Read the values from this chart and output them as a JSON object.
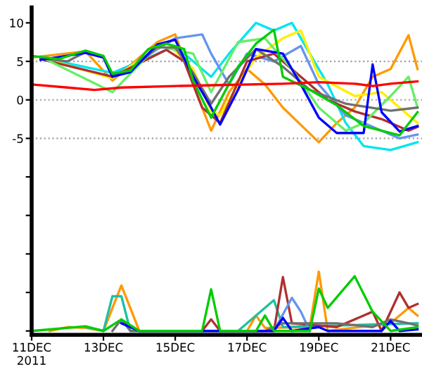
{
  "chart_data": {
    "type": "line",
    "xlim": [
      "2011-12-11T00:00",
      "2011-12-21T21:00"
    ],
    "ylim": [
      -30.5,
      12
    ],
    "xticks": [
      {
        "value": "2011-12-11",
        "label": "11DEC\n2011"
      },
      {
        "value": "2011-12-13",
        "label": "13DEC"
      },
      {
        "value": "2011-12-15",
        "label": "15DEC"
      },
      {
        "value": "2011-12-17",
        "label": "17DEC"
      },
      {
        "value": "2011-12-19",
        "label": "19DEC"
      },
      {
        "value": "2011-12-21",
        "label": "21DEC"
      }
    ],
    "yticks": [
      10,
      5,
      0,
      -5,
      {
        "value": -10,
        "label": null
      },
      {
        "value": -15,
        "label": null
      },
      {
        "value": -20,
        "label": null
      },
      {
        "value": -25,
        "label": null
      },
      {
        "value": -30,
        "label": null
      }
    ],
    "ref_lines": [
      {
        "axis": "y",
        "value": 5,
        "label": null,
        "color": "#a0a0a0",
        "line_style": "dotted"
      },
      {
        "axis": "y",
        "value": 0,
        "label": null,
        "color": "#a0a0a0",
        "line_style": "dotted"
      },
      {
        "axis": "y",
        "value": -5,
        "label": null,
        "color": "#a0a0a0",
        "line_style": "dotted"
      }
    ],
    "grid": false,
    "marker": "none",
    "line_style": "solid",
    "series": [
      {
        "color": "#ff9900",
        "x": [
          "2011-12-11T00:00",
          "2011-12-12T12:00",
          "2011-12-13T06:00",
          "2011-12-14T12:00",
          "2011-12-15T00:00",
          "2011-12-15T12:00",
          "2011-12-16T00:00",
          "2011-12-16T12:00",
          "2011-12-17T00:00",
          "2011-12-17T12:00",
          "2011-12-18T00:00",
          "2011-12-19T00:00",
          "2011-12-19T12:00",
          "2011-12-20T00:00",
          "2011-12-20T12:00",
          "2011-12-21T00:00",
          "2011-12-21T12:00",
          "2011-12-21T18:00"
        ],
        "values": [
          5.5,
          6.3,
          2.5,
          7.5,
          8.5,
          2.0,
          -4.0,
          1.0,
          4.0,
          2.0,
          -1.0,
          -5.5,
          -3.0,
          -1.0,
          3.0,
          4.0,
          8.4,
          4.0
        ]
      },
      {
        "color": "#00e5ee",
        "x": [
          "2011-12-11T06:00",
          "2011-12-13T06:00",
          "2011-12-15T00:00",
          "2011-12-15T12:00",
          "2011-12-16T00:00",
          "2011-12-16T12:00",
          "2011-12-17T06:00",
          "2011-12-17T18:00",
          "2011-12-18T06:00",
          "2011-12-18T18:00",
          "2011-12-19T06:00",
          "2011-12-19T18:00",
          "2011-12-20T06:00",
          "2011-12-21T00:00",
          "2011-12-21T18:00"
        ],
        "values": [
          5.5,
          3.5,
          7.0,
          5.0,
          3.0,
          6.0,
          10.0,
          9.0,
          10.0,
          6.0,
          2.0,
          -3.0,
          -6.0,
          -6.5,
          -5.5
        ]
      },
      {
        "color": "#6495ed",
        "x": [
          "2011-12-11T06:00",
          "2011-12-13T06:00",
          "2011-12-15T00:00",
          "2011-12-15T18:00",
          "2011-12-16T00:00",
          "2011-12-16T12:00",
          "2011-12-17T00:00",
          "2011-12-17T18:00",
          "2011-12-18T12:00",
          "2011-12-19T00:00",
          "2011-12-19T18:00",
          "2011-12-20T12:00",
          "2011-12-21T06:00",
          "2011-12-21T18:00"
        ],
        "values": [
          5.3,
          3.0,
          8.0,
          8.5,
          6.0,
          2.0,
          6.0,
          5.0,
          7.0,
          2.0,
          -2.0,
          -3.5,
          -5.0,
          -4.5
        ]
      },
      {
        "color": "#ffee00",
        "x": [
          "2011-12-11T06:00",
          "2011-12-13T06:00",
          "2011-12-14T18:00",
          "2011-12-15T12:00",
          "2011-12-16T00:00",
          "2011-12-16T06:00",
          "2011-12-16T18:00",
          "2011-12-17T06:00",
          "2011-12-18T00:00",
          "2011-12-18T12:00",
          "2011-12-19T00:00",
          "2011-12-20T00:00",
          "2011-12-20T18:00",
          "2011-12-21T12:00",
          "2011-12-21T18:00"
        ],
        "values": [
          5.5,
          2.8,
          7.5,
          4.0,
          -1.5,
          -2.0,
          2.0,
          5.5,
          8.0,
          9.0,
          3.0,
          0.5,
          1.0,
          -2.0,
          -3.0
        ]
      },
      {
        "color": "#b03030",
        "x": [
          "2011-12-11T06:00",
          "2011-12-13T06:00",
          "2011-12-14T18:00",
          "2011-12-15T06:00",
          "2011-12-15T18:00",
          "2011-12-16T06:00",
          "2011-12-17T00:00",
          "2011-12-17T18:00",
          "2011-12-18T12:00",
          "2011-12-19T06:00",
          "2011-12-20T00:00",
          "2011-12-20T18:00",
          "2011-12-21T12:00",
          "2011-12-21T18:00"
        ],
        "values": [
          5.3,
          3.0,
          6.5,
          5.0,
          -1.0,
          -3.0,
          5.0,
          6.0,
          3.0,
          0.0,
          -1.5,
          -2.5,
          -4.0,
          -3.5
        ]
      },
      {
        "color": "#66ee66",
        "x": [
          "2011-12-11T06:00",
          "2011-12-13T06:00",
          "2011-12-14T12:00",
          "2011-12-15T12:00",
          "2011-12-16T00:00",
          "2011-12-16T18:00",
          "2011-12-17T12:00",
          "2011-12-18T06:00",
          "2011-12-19T00:00",
          "2011-12-19T18:00",
          "2011-12-20T06:00",
          "2011-12-21T00:00",
          "2011-12-21T12:00",
          "2011-12-21T18:00"
        ],
        "values": [
          5.6,
          1.0,
          7.0,
          6.0,
          1.0,
          7.5,
          8.0,
          4.0,
          -1.0,
          -4.0,
          -3.0,
          0.5,
          3.0,
          -1.0
        ]
      },
      {
        "color": "#707070",
        "x": [
          "2011-12-11T06:00",
          "2011-12-12T00:00",
          "2011-12-12T12:00",
          "2011-12-13T00:00",
          "2011-12-13T06:00",
          "2011-12-13T18:00",
          "2011-12-14T12:00",
          "2011-12-15T00:00",
          "2011-12-15T12:00",
          "2011-12-16T00:00",
          "2011-12-16T12:00",
          "2011-12-17T06:00",
          "2011-12-18T00:00",
          "2011-12-18T18:00",
          "2011-12-19T18:00",
          "2011-12-21T00:00",
          "2011-12-21T18:00"
        ],
        "values": [
          5.4,
          5.0,
          6.2,
          5.6,
          3.3,
          3.8,
          6.8,
          6.8,
          3.5,
          -0.5,
          3.0,
          6.6,
          4.3,
          1.3,
          -0.5,
          -1.4,
          -1.0
        ]
      },
      {
        "color": "#0000ff",
        "x": [
          "2011-12-11T06:00",
          "2011-12-12T12:00",
          "2011-12-13T00:00",
          "2011-12-13T06:00",
          "2011-12-13T18:00",
          "2011-12-14T12:00",
          "2011-12-15T00:00",
          "2011-12-15T12:00",
          "2011-12-16T00:00",
          "2011-12-16T06:00",
          "2011-12-16T18:00",
          "2011-12-17T06:00",
          "2011-12-18T00:00",
          "2011-12-18T12:00",
          "2011-12-19T00:00",
          "2011-12-19T12:00",
          "2011-12-20T06:00",
          "2011-12-20T12:00",
          "2011-12-20T18:00",
          "2011-12-21T06:00",
          "2011-12-21T18:00"
        ],
        "values": [
          5.2,
          6.1,
          5.5,
          3.0,
          3.6,
          7.2,
          7.8,
          3.0,
          -1.0,
          -3.2,
          1.3,
          6.6,
          6.0,
          2.0,
          -2.3,
          -4.3,
          -4.3,
          4.6,
          -1.6,
          -4.1,
          -3.4
        ]
      },
      {
        "color": "#00cc00",
        "x": [
          "2011-12-11T00:00",
          "2011-12-11T18:00",
          "2011-12-12T12:00",
          "2011-12-13T00:00",
          "2011-12-13T06:00",
          "2011-12-13T18:00",
          "2011-12-14T06:00",
          "2011-12-14T18:00",
          "2011-12-15T06:00",
          "2011-12-15T12:00",
          "2011-12-16T00:00",
          "2011-12-16T18:00",
          "2011-12-17T06:00",
          "2011-12-17T18:00",
          "2011-12-18T00:00",
          "2011-12-18T18:00",
          "2011-12-19T12:00",
          "2011-12-20T06:00",
          "2011-12-21T06:00",
          "2011-12-21T18:00"
        ],
        "values": [
          5.7,
          5.3,
          6.4,
          5.7,
          3.4,
          3.8,
          6.6,
          7.3,
          6.6,
          2.5,
          -2.3,
          4.3,
          7.3,
          9.1,
          3.0,
          1.3,
          -0.7,
          -3.4,
          -4.6,
          -1.6
        ]
      },
      {
        "color": "#ff0000",
        "x": [
          "2011-12-11T00:00",
          "2011-12-12T00:00",
          "2011-12-12T18:00",
          "2011-12-13T12:00",
          "2011-12-15T00:00",
          "2011-12-16T00:00",
          "2011-12-18T00:00",
          "2011-12-19T00:00",
          "2011-12-20T00:00",
          "2011-12-20T12:00",
          "2011-12-21T00:00",
          "2011-12-21T18:00"
        ],
        "values": [
          2.0,
          1.6,
          1.3,
          1.6,
          1.8,
          1.9,
          2.1,
          2.3,
          2.1,
          1.8,
          2.1,
          2.4
        ]
      },
      {
        "color": "#ff9900",
        "x": [
          "2011-12-11T12:00",
          "2011-12-12T00:00",
          "2011-12-12T12:00",
          "2011-12-13T00:00",
          "2011-12-13T12:00",
          "2011-12-14T00:00",
          "2011-12-17T00:00",
          "2011-12-17T06:00",
          "2011-12-17T12:00",
          "2011-12-18T18:00",
          "2011-12-19T00:00",
          "2011-12-19T06:00",
          "2011-12-21T00:00",
          "2011-12-21T12:00",
          "2011-12-21T18:00"
        ],
        "values": [
          -30,
          -29.5,
          -29.6,
          -30,
          -24.1,
          -30,
          -30,
          -28,
          -29.6,
          -29.5,
          -22.3,
          -30,
          -29,
          -27,
          -28
        ]
      },
      {
        "color": "#20c0a0",
        "x": [
          "2011-12-12T12:00",
          "2011-12-13T00:00",
          "2011-12-13T06:00",
          "2011-12-13T12:00",
          "2011-12-13T18:00",
          "2011-12-16T18:00",
          "2011-12-17T18:00",
          "2011-12-18T00:00",
          "2011-12-21T18:00"
        ],
        "values": [
          -29.5,
          -30,
          -25.5,
          -25.5,
          -30,
          -30,
          -26,
          -29.5,
          -29
        ]
      },
      {
        "color": "#b03030",
        "x": [
          "2011-12-15T18:00",
          "2011-12-16T00:00",
          "2011-12-16T06:00",
          "2011-12-17T18:00",
          "2011-12-18T00:00",
          "2011-12-18T06:00",
          "2011-12-19T12:00",
          "2011-12-20T12:00",
          "2011-12-20T18:00",
          "2011-12-21T06:00",
          "2011-12-21T12:00",
          "2011-12-21T18:00"
        ],
        "values": [
          -30,
          -28.5,
          -30,
          -30,
          -23.0,
          -29,
          -29.5,
          -27.5,
          -30,
          -25,
          -27,
          -26.5
        ]
      },
      {
        "color": "#6495ed",
        "x": [
          "2011-12-17T18:00",
          "2011-12-18T06:00",
          "2011-12-18T12:00",
          "2011-12-18T18:00"
        ],
        "values": [
          -30,
          -25.7,
          -27.5,
          -30
        ]
      },
      {
        "color": "#707070",
        "x": [
          "2011-12-13T06:00",
          "2011-12-13T12:00",
          "2011-12-13T18:00",
          "2011-12-17T12:00",
          "2011-12-18T00:00",
          "2011-12-19T12:00",
          "2011-12-20T12:00",
          "2011-12-21T00:00",
          "2011-12-21T12:00",
          "2011-12-21T18:00"
        ],
        "values": [
          -30,
          -28.5,
          -30,
          -30,
          -29.0,
          -29.0,
          -29.5,
          -28.5,
          -29.0,
          -29.3
        ]
      },
      {
        "color": "#0000ff",
        "x": [
          "2011-12-13T12:00",
          "2011-12-14T00:00",
          "2011-12-17T18:00",
          "2011-12-18T00:00",
          "2011-12-18T06:00",
          "2011-12-19T00:00",
          "2011-12-19T06:00",
          "2011-12-20T18:00",
          "2011-12-21T00:00",
          "2011-12-21T06:00",
          "2011-12-21T18:00"
        ],
        "values": [
          -29,
          -30,
          -30,
          -28.3,
          -30,
          -29.5,
          -30,
          -30,
          -28.7,
          -30,
          -29.8
        ]
      },
      {
        "color": "#00cc00",
        "x": [
          "2011-12-11T00:00",
          "2011-12-12T12:00",
          "2011-12-13T00:00",
          "2011-12-13T12:00",
          "2011-12-14T00:00",
          "2011-12-15T18:00",
          "2011-12-16T00:00",
          "2011-12-16T06:00",
          "2011-12-17T06:00",
          "2011-12-17T12:00",
          "2011-12-17T18:00",
          "2011-12-18T18:00",
          "2011-12-19T00:00",
          "2011-12-19T06:00",
          "2011-12-20T00:00",
          "2011-12-20T12:00",
          "2011-12-21T00:00",
          "2011-12-21T18:00"
        ],
        "values": [
          -30,
          -29.4,
          -30,
          -28.5,
          -30,
          -30,
          -24.6,
          -30,
          -30,
          -28,
          -30,
          -30,
          -24.5,
          -27.0,
          -22.9,
          -27.5,
          -30,
          -29.5
        ]
      }
    ]
  }
}
